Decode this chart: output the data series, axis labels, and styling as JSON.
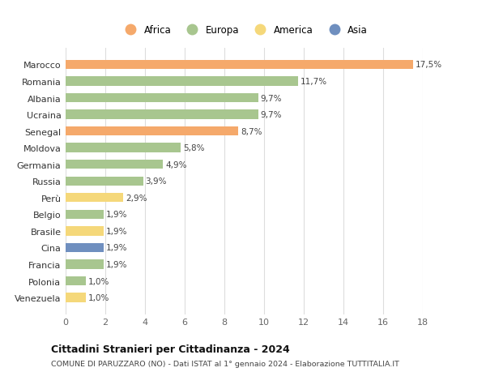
{
  "countries": [
    "Venezuela",
    "Polonia",
    "Francia",
    "Cina",
    "Brasile",
    "Belgio",
    "Perù",
    "Russia",
    "Germania",
    "Moldova",
    "Senegal",
    "Ucraina",
    "Albania",
    "Romania",
    "Marocco"
  ],
  "values": [
    1.0,
    1.0,
    1.9,
    1.9,
    1.9,
    1.9,
    2.9,
    3.9,
    4.9,
    5.8,
    8.7,
    9.7,
    9.7,
    11.7,
    17.5
  ],
  "labels": [
    "1,0%",
    "1,0%",
    "1,9%",
    "1,9%",
    "1,9%",
    "1,9%",
    "2,9%",
    "3,9%",
    "4,9%",
    "5,8%",
    "8,7%",
    "9,7%",
    "9,7%",
    "11,7%",
    "17,5%"
  ],
  "continents": [
    "America",
    "Europa",
    "Europa",
    "Asia",
    "America",
    "Europa",
    "America",
    "Europa",
    "Europa",
    "Europa",
    "Africa",
    "Europa",
    "Europa",
    "Europa",
    "Africa"
  ],
  "colors": {
    "Africa": "#F5A96B",
    "Europa": "#A8C68F",
    "America": "#F5D87A",
    "Asia": "#6F8FBF"
  },
  "legend_order": [
    "Africa",
    "Europa",
    "America",
    "Asia"
  ],
  "xlim": [
    0,
    18
  ],
  "xticks": [
    0,
    2,
    4,
    6,
    8,
    10,
    12,
    14,
    16,
    18
  ],
  "title": "Cittadini Stranieri per Cittadinanza - 2024",
  "subtitle": "COMUNE DI PARUZZARO (NO) - Dati ISTAT al 1° gennaio 2024 - Elaborazione TUTTITALIA.IT",
  "background_color": "#ffffff",
  "grid_color": "#dddddd",
  "bar_height": 0.55
}
